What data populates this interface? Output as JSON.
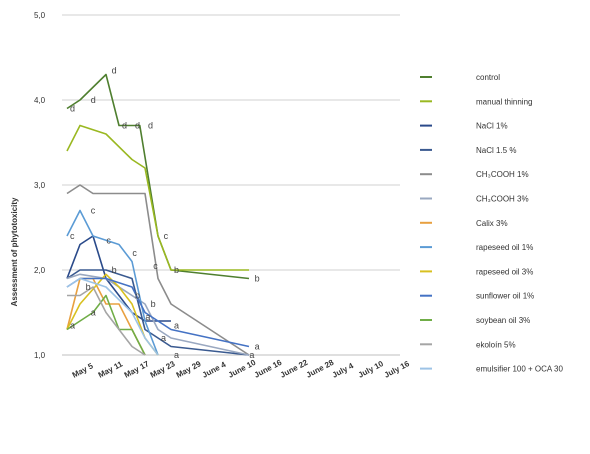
{
  "chart_data": {
    "type": "line",
    "title": "",
    "xlabel": "",
    "ylabel": "Assessment of phytotoxicity",
    "ylim": [
      1.0,
      5.0
    ],
    "yticks": [
      "1,0",
      "2,0",
      "3,0",
      "4,0",
      "5,0"
    ],
    "grid": "horizontal at 2.0, 3.0, 4.0, 5.0",
    "legend_position": "right",
    "categories": [
      "May 5",
      "May 11",
      "May 17",
      "May 23",
      "May 29",
      "June 4",
      "June 10",
      "June 16",
      "June 22",
      "June 28",
      "July 4",
      "July 10",
      "July 16"
    ],
    "series": [
      {
        "name": "control",
        "color": "#4f7f2f",
        "points": [
          [
            -0.5,
            3.9
          ],
          [
            0,
            4.0
          ],
          [
            1,
            4.3
          ],
          [
            1.5,
            3.7
          ],
          [
            2.3,
            3.7
          ],
          [
            3,
            2.4
          ],
          [
            3.5,
            2.0
          ],
          [
            6.5,
            1.9
          ]
        ]
      },
      {
        "name": "manual thinning",
        "color": "#9ab821",
        "points": [
          [
            -0.5,
            3.4
          ],
          [
            0,
            3.7
          ],
          [
            1,
            3.6
          ],
          [
            2,
            3.3
          ],
          [
            2.5,
            3.2
          ],
          [
            3,
            2.4
          ],
          [
            3.5,
            2.0
          ],
          [
            6.5,
            2.0
          ]
        ]
      },
      {
        "name": "NaCl 1%",
        "color": "#2a4a8a",
        "points": [
          [
            -0.5,
            1.9
          ],
          [
            0,
            2.3
          ],
          [
            0.5,
            2.4
          ],
          [
            1,
            1.9
          ],
          [
            1.5,
            1.7
          ],
          [
            2,
            1.5
          ],
          [
            2.5,
            1.4
          ],
          [
            3.5,
            1.4
          ]
        ]
      },
      {
        "name": "NaCl 1.5 %",
        "color": "#3a5a90",
        "points": [
          [
            -0.5,
            1.9
          ],
          [
            0,
            2.0
          ],
          [
            1,
            2.0
          ],
          [
            2,
            1.9
          ],
          [
            2.5,
            1.3
          ],
          [
            3,
            1.2
          ],
          [
            3.5,
            1.1
          ],
          [
            6.5,
            1.0
          ]
        ]
      },
      {
        "name": "CH₃COOH 1%",
        "color": "#8c8c8c",
        "points": [
          [
            -0.5,
            2.9
          ],
          [
            0,
            3.0
          ],
          [
            0.5,
            2.9
          ],
          [
            1.5,
            2.9
          ],
          [
            2.5,
            2.9
          ],
          [
            3,
            1.9
          ],
          [
            3.5,
            1.6
          ],
          [
            6.5,
            1.0
          ]
        ]
      },
      {
        "name": "CH₃COOH 3%",
        "color": "#9aa8c0",
        "points": [
          [
            -0.5,
            1.9
          ],
          [
            0,
            1.95
          ],
          [
            1,
            1.9
          ],
          [
            2.5,
            1.6
          ],
          [
            3,
            1.3
          ],
          [
            3.5,
            1.2
          ],
          [
            6.5,
            1.0
          ]
        ]
      },
      {
        "name": "Calix 3%",
        "color": "#e8a040",
        "points": [
          [
            -0.5,
            1.3
          ],
          [
            0,
            1.9
          ],
          [
            0.5,
            1.9
          ],
          [
            1,
            1.6
          ],
          [
            1.5,
            1.6
          ],
          [
            2,
            1.3
          ],
          [
            2.5,
            1.0
          ]
        ]
      },
      {
        "name": "rapeseed oil 1%",
        "color": "#5b9bd5",
        "points": [
          [
            -0.5,
            2.4
          ],
          [
            0,
            2.7
          ],
          [
            0.5,
            2.4
          ],
          [
            1.5,
            2.3
          ],
          [
            2,
            2.1
          ],
          [
            2.5,
            1.4
          ],
          [
            3,
            1.0
          ]
        ]
      },
      {
        "name": "rapeseed oil 3%",
        "color": "#d8c020",
        "points": [
          [
            -0.5,
            1.3
          ],
          [
            0,
            1.6
          ],
          [
            1,
            1.95
          ],
          [
            1.5,
            1.8
          ],
          [
            2,
            1.6
          ],
          [
            2.5,
            1.2
          ],
          [
            3,
            1.0
          ]
        ]
      },
      {
        "name": "sunflower oil 1%",
        "color": "#4472c4",
        "points": [
          [
            -0.5,
            1.8
          ],
          [
            0,
            1.9
          ],
          [
            1,
            1.9
          ],
          [
            2,
            1.8
          ],
          [
            2.5,
            1.5
          ],
          [
            3.5,
            1.3
          ],
          [
            6.5,
            1.1
          ]
        ]
      },
      {
        "name": "soybean oil 3%",
        "color": "#70ad47",
        "points": [
          [
            -0.5,
            1.3
          ],
          [
            0,
            1.4
          ],
          [
            0.5,
            1.5
          ],
          [
            1,
            1.7
          ],
          [
            1.5,
            1.3
          ],
          [
            2,
            1.3
          ],
          [
            2.5,
            1.0
          ]
        ]
      },
      {
        "name": "ekoloín 5%",
        "color": "#a5a5a5",
        "points": [
          [
            -0.5,
            1.7
          ],
          [
            0,
            1.7
          ],
          [
            0.5,
            1.8
          ],
          [
            1,
            1.5
          ],
          [
            1.5,
            1.3
          ],
          [
            2,
            1.1
          ],
          [
            2.5,
            1.0
          ]
        ]
      },
      {
        "name": "emulsifier 100 + OCA 30",
        "color": "#9dc3e6",
        "points": [
          [
            -0.5,
            1.8
          ],
          [
            0,
            1.9
          ],
          [
            1,
            1.8
          ],
          [
            2,
            1.5
          ],
          [
            2.5,
            1.2
          ],
          [
            3,
            1.0
          ]
        ]
      }
    ],
    "annotations": [
      {
        "text": "d",
        "x": 1.1,
        "y": 4.35
      },
      {
        "text": "d",
        "x": -0.5,
        "y": 3.9
      },
      {
        "text": "d",
        "x": 0.3,
        "y": 4.0
      },
      {
        "text": "d",
        "x": 1.5,
        "y": 3.7
      },
      {
        "text": "d",
        "x": 2.0,
        "y": 3.7
      },
      {
        "text": "d",
        "x": 2.5,
        "y": 3.7
      },
      {
        "text": "c",
        "x": 3.1,
        "y": 2.4
      },
      {
        "text": "c",
        "x": 0.3,
        "y": 2.7
      },
      {
        "text": "c",
        "x": -0.5,
        "y": 2.4
      },
      {
        "text": "c",
        "x": 0.9,
        "y": 2.35
      },
      {
        "text": "c",
        "x": 1.9,
        "y": 2.2
      },
      {
        "text": "c",
        "x": 2.7,
        "y": 2.05
      },
      {
        "text": "b",
        "x": 0.1,
        "y": 1.8
      },
      {
        "text": "b",
        "x": 1.1,
        "y": 2.0
      },
      {
        "text": "b",
        "x": 2.0,
        "y": 1.7
      },
      {
        "text": "b",
        "x": 3.5,
        "y": 2.0
      },
      {
        "text": "b",
        "x": 6.6,
        "y": 1.9
      },
      {
        "text": "b",
        "x": 2.6,
        "y": 1.6
      },
      {
        "text": "a",
        "x": -0.5,
        "y": 1.35
      },
      {
        "text": "a",
        "x": 0.3,
        "y": 1.5
      },
      {
        "text": "a",
        "x": 2.4,
        "y": 1.45
      },
      {
        "text": "a",
        "x": 3.0,
        "y": 1.2
      },
      {
        "text": "a",
        "x": 3.5,
        "y": 1.0
      },
      {
        "text": "a",
        "x": 6.6,
        "y": 1.1
      },
      {
        "text": "a",
        "x": 6.4,
        "y": 1.0
      },
      {
        "text": "a",
        "x": 3.5,
        "y": 1.35
      }
    ]
  }
}
